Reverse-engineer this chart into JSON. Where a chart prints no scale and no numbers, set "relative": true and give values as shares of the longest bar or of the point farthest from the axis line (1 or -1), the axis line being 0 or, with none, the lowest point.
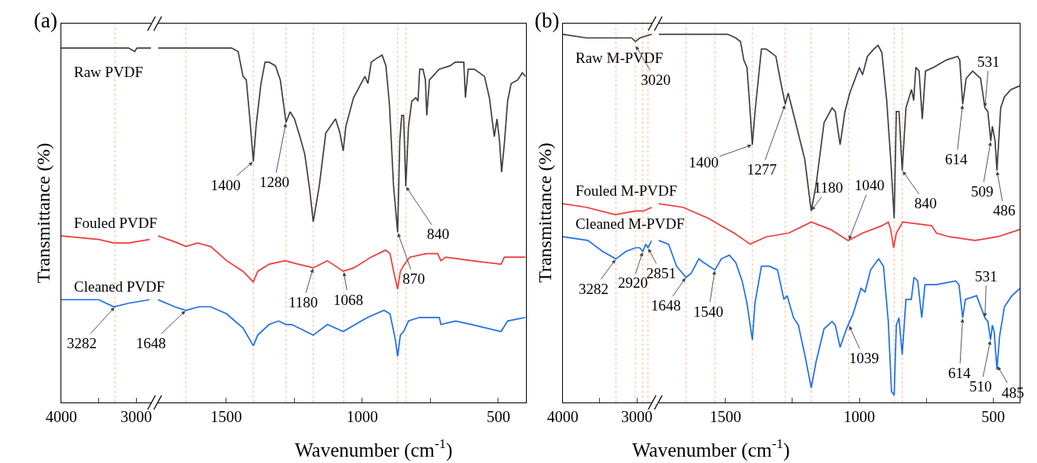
{
  "chart_data": [
    {
      "type": "line",
      "title": "(a)",
      "ylabel": "Transmittance (%)",
      "relative": true,
      "xlim": [
        4000,
        2800
      ],
      "xticks": [
        4000,
        {
          "value": 3500,
          "label": null
        },
        3000
      ],
      "tick_labels": "x",
      "series": [
        {
          "name": "Raw PVDF",
          "color": "#404040",
          "x": [
            4000,
            3500,
            3100,
            3020,
            2990,
            2800
          ],
          "values": [
            1.0,
            1.0,
            1.0,
            0.99,
            1.0,
            1.0
          ]
        },
        {
          "name": "Fouled PVDF",
          "color": "#ee3b3b",
          "x": [
            4000,
            3500,
            3300,
            3100,
            2820
          ],
          "values": [
            0.47,
            0.46,
            0.45,
            0.45,
            0.46
          ]
        },
        {
          "name": "Cleaned PVDF",
          "color": "#1f6ee8",
          "x": [
            4000,
            3500,
            3300,
            3100,
            2820
          ],
          "values": [
            0.29,
            0.29,
            0.27,
            0.28,
            0.29
          ]
        }
      ],
      "ref_lines": [
        {
          "axis": "x",
          "value": 3282,
          "color": "#f8c79a",
          "line_style": "dotted"
        }
      ],
      "annotations": [
        {
          "text": "3282",
          "x": 3282,
          "y": 0.27
        }
      ]
    },
    {
      "type": "line",
      "xlabel": "Wavenumber (cm$^{-1}$)",
      "relative": true,
      "xlim": [
        1750,
        400
      ],
      "xticks": [
        1500,
        {
          "value": 1250,
          "label": null
        },
        1000,
        {
          "value": 750,
          "label": null
        },
        500
      ],
      "tick_labels": "x",
      "series": [
        {
          "color": "#404040",
          "x": [
            1750,
            1557,
            1480,
            1456,
            1438,
            1426,
            1414,
            1400,
            1390,
            1372,
            1357,
            1342,
            1319,
            1301,
            1280,
            1265,
            1249,
            1229,
            1211,
            1193,
            1180,
            1158,
            1134,
            1098,
            1082,
            1070,
            1060,
            1032,
            990,
            979,
            967,
            949,
            927,
            913,
            900,
            885,
            870,
            862,
            855,
            848,
            840,
            830,
            818,
            803,
            795,
            789,
            777,
            768,
            763,
            753,
            718,
            677,
            659,
            627,
            621,
            611,
            588,
            551,
            533,
            515,
            505,
            496,
            488,
            478,
            466,
            453,
            429,
            412,
            400
          ],
          "values": [
            1.0,
            1.0,
            1.0,
            0.99,
            0.92,
            0.91,
            0.81,
            0.68,
            0.78,
            0.9,
            0.96,
            0.96,
            0.95,
            0.91,
            0.79,
            0.82,
            0.8,
            0.75,
            0.7,
            0.6,
            0.51,
            0.61,
            0.76,
            0.8,
            0.76,
            0.71,
            0.78,
            0.86,
            0.92,
            0.9,
            0.96,
            0.97,
            0.98,
            0.95,
            0.84,
            0.61,
            0.48,
            0.74,
            0.81,
            0.81,
            0.61,
            0.78,
            0.85,
            0.86,
            0.85,
            0.94,
            0.94,
            0.91,
            0.81,
            0.91,
            0.94,
            0.95,
            0.96,
            0.96,
            0.86,
            0.94,
            0.94,
            0.92,
            0.86,
            0.75,
            0.8,
            0.74,
            0.65,
            0.73,
            0.85,
            0.9,
            0.91,
            0.93,
            0.92
          ]
        },
        {
          "color": "#ee3b3b",
          "x": [
            1750,
            1677,
            1648,
            1605,
            1557,
            1498,
            1438,
            1400,
            1384,
            1342,
            1283,
            1235,
            1180,
            1128,
            1070,
            1030,
            968,
            914,
            898,
            882,
            870,
            860,
            845,
            825,
            765,
            723,
            711,
            693,
            598,
            490,
            478,
            400
          ],
          "values": [
            0.47,
            0.45,
            0.44,
            0.45,
            0.44,
            0.4,
            0.37,
            0.34,
            0.37,
            0.39,
            0.4,
            0.39,
            0.38,
            0.4,
            0.37,
            0.38,
            0.41,
            0.43,
            0.42,
            0.36,
            0.32,
            0.37,
            0.39,
            0.41,
            0.42,
            0.42,
            0.4,
            0.41,
            0.4,
            0.39,
            0.41,
            0.41
          ]
        },
        {
          "color": "#1f6ee8",
          "x": [
            1750,
            1689,
            1648,
            1600,
            1557,
            1498,
            1438,
            1400,
            1384,
            1342,
            1307,
            1280,
            1259,
            1180,
            1128,
            1070,
            1003,
            980,
            920,
            898,
            879,
            870,
            860,
            848,
            830,
            789,
            765,
            717,
            711,
            657,
            598,
            490,
            466,
            400
          ],
          "values": [
            0.29,
            0.27,
            0.26,
            0.27,
            0.27,
            0.25,
            0.21,
            0.16,
            0.19,
            0.22,
            0.23,
            0.22,
            0.22,
            0.19,
            0.22,
            0.2,
            0.23,
            0.24,
            0.26,
            0.25,
            0.18,
            0.13,
            0.19,
            0.2,
            0.23,
            0.24,
            0.24,
            0.24,
            0.22,
            0.23,
            0.22,
            0.2,
            0.23,
            0.24
          ]
        }
      ],
      "ref_lines": [
        {
          "axis": "x",
          "value": 1648,
          "color": "#f8c79a",
          "line_style": "dotted"
        },
        {
          "axis": "x",
          "value": 1400,
          "color": "#f8c79a",
          "line_style": "dotted"
        },
        {
          "axis": "x",
          "value": 1280,
          "color": "#f8c79a",
          "line_style": "dotted"
        },
        {
          "axis": "x",
          "value": 1180,
          "color": "#f8c79a",
          "line_style": "dotted"
        },
        {
          "axis": "x",
          "value": 1068,
          "color": "#f8c79a",
          "line_style": "dotted"
        },
        {
          "axis": "x",
          "value": 870,
          "color": "#f8c79a",
          "line_style": "dotted"
        },
        {
          "axis": "x",
          "value": 840,
          "color": "#f8c79a",
          "line_style": "dotted"
        }
      ],
      "annotations": [
        {
          "text": "1648",
          "x": 1648,
          "y": 0.26
        },
        {
          "text": "1400",
          "x": 1400,
          "y": 0.68
        },
        {
          "text": "1280",
          "x": 1280,
          "y": 0.79
        },
        {
          "text": "1180",
          "x": 1180,
          "y": 0.38
        },
        {
          "text": "1068",
          "x": 1068,
          "y": 0.37
        },
        {
          "text": "870",
          "x": 870,
          "y": 0.48
        },
        {
          "text": "840",
          "x": 840,
          "y": 0.61
        }
      ]
    },
    {
      "type": "line",
      "title": "(b)",
      "ylabel": "Transmittance (%)",
      "relative": true,
      "xlim": [
        4000,
        2800
      ],
      "xticks": [
        4000,
        {
          "value": 3500,
          "label": null
        },
        3000
      ],
      "tick_labels": "x",
      "series": [
        {
          "name": "Raw M-PVDF",
          "color": "#404040",
          "x": [
            4000,
            3680,
            3370,
            3070,
            3020,
            2960,
            2800
          ],
          "values": [
            1.0,
            0.99,
            0.99,
            0.99,
            0.98,
            0.99,
            1.0
          ]
        },
        {
          "name": "Fouled M-PVDF",
          "color": "#ee3b3b",
          "x": [
            4000,
            3680,
            3290,
            3020,
            2910,
            2800
          ],
          "values": [
            0.54,
            0.53,
            0.51,
            0.52,
            0.52,
            0.53
          ]
        },
        {
          "name": "Cleaned M-PVDF",
          "color": "#1f6ee8",
          "x": [
            4000,
            3660,
            3460,
            3282,
            3150,
            3020,
            2960,
            2920,
            2880,
            2851,
            2800
          ],
          "values": [
            0.45,
            0.44,
            0.41,
            0.39,
            0.41,
            0.42,
            0.42,
            0.41,
            0.43,
            0.42,
            0.44
          ]
        }
      ],
      "ref_lines": [
        {
          "axis": "x",
          "value": 3282,
          "color": "#f8c79a",
          "line_style": "dotted"
        },
        {
          "axis": "x",
          "value": 3020,
          "color": "#f8c79a",
          "line_style": "dotted"
        },
        {
          "axis": "x",
          "value": 2920,
          "color": "#f8c79a",
          "line_style": "dotted"
        },
        {
          "axis": "x",
          "value": 2851,
          "color": "#f8c79a",
          "line_style": "dotted"
        }
      ],
      "annotations": [
        {
          "text": "3282",
          "x": 3282,
          "y": 0.39
        },
        {
          "text": "3020",
          "x": 3020,
          "y": 0.97
        },
        {
          "text": "2920",
          "x": 2920,
          "y": 0.41
        },
        {
          "text": "2851",
          "x": 2851,
          "y": 0.42
        }
      ]
    },
    {
      "type": "line",
      "xlabel": "Wavenumber (cm$^{-1}$)",
      "relative": true,
      "xlim": [
        1750,
        400
      ],
      "xticks": [
        1500,
        {
          "value": 1250,
          "label": null
        },
        1000,
        {
          "value": 750,
          "label": null
        },
        500
      ],
      "tick_labels": "x",
      "series": [
        {
          "color": "#404040",
          "x": [
            1750,
            1492,
            1462,
            1444,
            1432,
            1420,
            1411,
            1400,
            1390,
            1366,
            1348,
            1312,
            1294,
            1277,
            1266,
            1252,
            1228,
            1204,
            1180,
            1162,
            1132,
            1102,
            1090,
            1072,
            1054,
            1036,
            1000,
            988,
            970,
            946,
            930,
            916,
            898,
            882,
            870,
            862,
            852,
            840,
            826,
            805,
            797,
            789,
            777,
            765,
            753,
            723,
            675,
            633,
            625,
            614,
            601,
            577,
            547,
            531,
            520,
            509,
            503,
            493,
            486,
            472,
            458,
            434,
            400
          ],
          "values": [
            1.0,
            1.0,
            0.99,
            0.98,
            0.93,
            0.91,
            0.82,
            0.7,
            0.79,
            0.96,
            0.96,
            0.94,
            0.87,
            0.81,
            0.84,
            0.8,
            0.73,
            0.66,
            0.52,
            0.59,
            0.76,
            0.8,
            0.79,
            0.7,
            0.79,
            0.84,
            0.91,
            0.89,
            0.94,
            0.96,
            0.97,
            0.95,
            0.82,
            0.65,
            0.5,
            0.79,
            0.79,
            0.63,
            0.8,
            0.85,
            0.82,
            0.91,
            0.9,
            0.77,
            0.9,
            0.91,
            0.93,
            0.94,
            0.93,
            0.81,
            0.88,
            0.9,
            0.88,
            0.8,
            0.79,
            0.71,
            0.75,
            0.71,
            0.63,
            0.8,
            0.83,
            0.85,
            0.86
          ]
        },
        {
          "color": "#ee3b3b",
          "x": [
            1750,
            1659,
            1564,
            1516,
            1468,
            1408,
            1348,
            1264,
            1180,
            1108,
            1042,
            988,
            916,
            892,
            883,
            872,
            862,
            838,
            730,
            712,
            664,
            568,
            484,
            400
          ],
          "values": [
            0.54,
            0.53,
            0.5,
            0.48,
            0.46,
            0.43,
            0.45,
            0.46,
            0.49,
            0.47,
            0.44,
            0.46,
            0.48,
            0.49,
            0.47,
            0.42,
            0.46,
            0.49,
            0.48,
            0.46,
            0.45,
            0.44,
            0.45,
            0.47
          ]
        },
        {
          "color": "#1f6ee8",
          "x": [
            1750,
            1713,
            1683,
            1648,
            1629,
            1600,
            1582,
            1540,
            1516,
            1486,
            1462,
            1438,
            1420,
            1400,
            1390,
            1366,
            1336,
            1306,
            1282,
            1270,
            1246,
            1228,
            1204,
            1180,
            1162,
            1132,
            1102,
            1090,
            1072,
            1048,
            1024,
            994,
            979,
            958,
            928,
            910,
            892,
            880,
            870,
            862,
            852,
            840,
            826,
            806,
            796,
            782,
            767,
            755,
            713,
            640,
            628,
            614,
            604,
            562,
            531,
            520,
            510,
            503,
            496,
            486,
            476,
            458,
            430,
            400
          ],
          "values": [
            0.44,
            0.43,
            0.37,
            0.34,
            0.35,
            0.39,
            0.38,
            0.36,
            0.39,
            0.4,
            0.38,
            0.33,
            0.27,
            0.17,
            0.27,
            0.37,
            0.37,
            0.36,
            0.28,
            0.29,
            0.23,
            0.21,
            0.13,
            0.04,
            0.11,
            0.2,
            0.22,
            0.21,
            0.15,
            0.2,
            0.24,
            0.31,
            0.3,
            0.36,
            0.39,
            0.37,
            0.22,
            0.03,
            0.02,
            0.21,
            0.23,
            0.13,
            0.28,
            0.28,
            0.34,
            0.33,
            0.23,
            0.32,
            0.32,
            0.33,
            0.32,
            0.23,
            0.28,
            0.29,
            0.23,
            0.22,
            0.17,
            0.21,
            0.19,
            0.09,
            0.18,
            0.26,
            0.29,
            0.31
          ]
        }
      ],
      "ref_lines": [
        {
          "axis": "x",
          "value": 1648,
          "color": "#f8c79a",
          "line_style": "dotted"
        },
        {
          "axis": "x",
          "value": 1540,
          "color": "#f8c79a",
          "line_style": "dotted"
        },
        {
          "axis": "x",
          "value": 1400,
          "color": "#f8c79a",
          "line_style": "dotted"
        },
        {
          "axis": "x",
          "value": 1277,
          "color": "#f8c79a",
          "line_style": "dotted"
        },
        {
          "axis": "x",
          "value": 1180,
          "color": "#f8c79a",
          "line_style": "dotted"
        },
        {
          "axis": "x",
          "value": 1040,
          "color": "#f8c79a",
          "line_style": "dotted"
        },
        {
          "axis": "x",
          "value": 870,
          "color": "#f8c79a",
          "line_style": "dotted"
        },
        {
          "axis": "x",
          "value": 840,
          "color": "#f8c79a",
          "line_style": "dotted"
        }
      ],
      "annotations": [
        {
          "text": "1400",
          "x": 1400,
          "y": 0.7
        },
        {
          "text": "1277",
          "x": 1277,
          "y": 0.81
        },
        {
          "text": "1180",
          "x": 1180,
          "y": 0.52
        },
        {
          "text": "1040",
          "x": 1040,
          "y": 0.44
        },
        {
          "text": "840",
          "x": 840,
          "y": 0.63
        },
        {
          "text": "614",
          "x": 614,
          "y": 0.81
        },
        {
          "text": "531",
          "x": 531,
          "y": 0.8
        },
        {
          "text": "509",
          "x": 509,
          "y": 0.71
        },
        {
          "text": "486",
          "x": 486,
          "y": 0.63
        },
        {
          "text": "1648",
          "x": 1648,
          "y": 0.34
        },
        {
          "text": "1540",
          "x": 1540,
          "y": 0.36
        },
        {
          "text": "1039",
          "x": 1039,
          "y": 0.21
        },
        {
          "text": "614",
          "x": 614,
          "y": 0.23
        },
        {
          "text": "531",
          "x": 531,
          "y": 0.23
        },
        {
          "text": "510",
          "x": 510,
          "y": 0.17
        },
        {
          "text": "485",
          "x": 485,
          "y": 0.1
        }
      ]
    }
  ]
}
